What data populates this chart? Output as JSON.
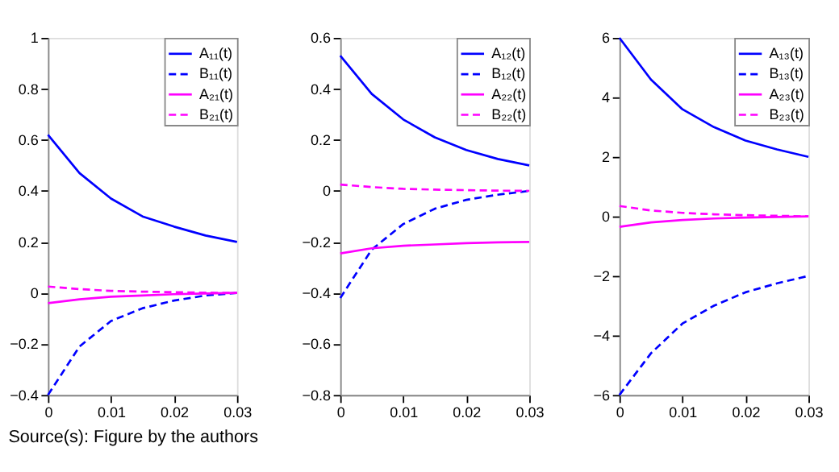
{
  "chart_data": [
    {
      "type": "line",
      "x": [
        0,
        0.005,
        0.01,
        0.015,
        0.02,
        0.025,
        0.03
      ],
      "xlim": [
        0,
        0.03
      ],
      "xticks": [
        0,
        0.01,
        0.02,
        0.03
      ],
      "ylim": [
        -0.4,
        1
      ],
      "yticks": [
        -0.4,
        -0.2,
        0,
        0.2,
        0.4,
        0.6,
        0.8,
        1
      ],
      "grid": false,
      "legend": "top right",
      "annotations": [
        "Source(s): Figure by the authors"
      ],
      "series": [
        {
          "name": "A₁₁(t)",
          "color": "#0000ff",
          "line_style": "solid",
          "values": [
            0.62,
            0.47,
            0.37,
            0.3,
            0.26,
            0.225,
            0.2
          ]
        },
        {
          "name": "B₁₁(t)",
          "color": "#0000ff",
          "line_style": "dashed",
          "values": [
            -0.4,
            -0.21,
            -0.11,
            -0.06,
            -0.03,
            -0.01,
            0
          ]
        },
        {
          "name": "A₂₁(t)",
          "color": "#ff00ff",
          "line_style": "solid",
          "values": [
            -0.04,
            -0.025,
            -0.015,
            -0.01,
            -0.005,
            -0.002,
            0
          ]
        },
        {
          "name": "B₂₁(t)",
          "color": "#ff00ff",
          "line_style": "dashed",
          "values": [
            0.025,
            0.015,
            0.008,
            0.005,
            0.003,
            0.001,
            0
          ]
        }
      ]
    },
    {
      "type": "line",
      "x": [
        0,
        0.005,
        0.01,
        0.015,
        0.02,
        0.025,
        0.03
      ],
      "xlim": [
        0,
        0.03
      ],
      "xticks": [
        0,
        0.01,
        0.02,
        0.03
      ],
      "ylim": [
        -0.8,
        0.6
      ],
      "yticks": [
        -0.8,
        -0.6,
        -0.4,
        -0.2,
        0,
        0.2,
        0.4,
        0.6
      ],
      "grid": false,
      "legend": "top right",
      "series": [
        {
          "name": "A₁₂(t)",
          "color": "#0000ff",
          "line_style": "solid",
          "values": [
            0.53,
            0.38,
            0.28,
            0.21,
            0.16,
            0.125,
            0.1
          ]
        },
        {
          "name": "B₁₂(t)",
          "color": "#0000ff",
          "line_style": "dashed",
          "values": [
            -0.42,
            -0.23,
            -0.13,
            -0.07,
            -0.035,
            -0.015,
            0
          ]
        },
        {
          "name": "A₂₂(t)",
          "color": "#ff00ff",
          "line_style": "solid",
          "values": [
            -0.245,
            -0.225,
            -0.215,
            -0.21,
            -0.205,
            -0.202,
            -0.2
          ]
        },
        {
          "name": "B₂₂(t)",
          "color": "#ff00ff",
          "line_style": "dashed",
          "values": [
            0.025,
            0.015,
            0.008,
            0.005,
            0.003,
            0.001,
            0
          ]
        }
      ]
    },
    {
      "type": "line",
      "x": [
        0,
        0.005,
        0.01,
        0.015,
        0.02,
        0.025,
        0.03
      ],
      "xlim": [
        0,
        0.03
      ],
      "xticks": [
        0,
        0.01,
        0.02,
        0.03
      ],
      "ylim": [
        -6,
        6
      ],
      "yticks": [
        -6,
        -4,
        -2,
        0,
        2,
        4,
        6
      ],
      "grid": false,
      "legend": "top right",
      "series": [
        {
          "name": "A₁₃(t)",
          "color": "#0000ff",
          "line_style": "solid",
          "values": [
            6.0,
            4.6,
            3.6,
            3.0,
            2.55,
            2.25,
            2.0
          ]
        },
        {
          "name": "B₁₃(t)",
          "color": "#0000ff",
          "line_style": "dashed",
          "values": [
            -6.0,
            -4.6,
            -3.6,
            -3.0,
            -2.55,
            -2.25,
            -2.0
          ]
        },
        {
          "name": "A₂₃(t)",
          "color": "#ff00ff",
          "line_style": "solid",
          "values": [
            -0.35,
            -0.2,
            -0.12,
            -0.07,
            -0.04,
            -0.02,
            0
          ]
        },
        {
          "name": "B₂₃(t)",
          "color": "#ff00ff",
          "line_style": "dashed",
          "values": [
            0.35,
            0.2,
            0.12,
            0.07,
            0.04,
            0.02,
            0
          ]
        }
      ]
    }
  ]
}
